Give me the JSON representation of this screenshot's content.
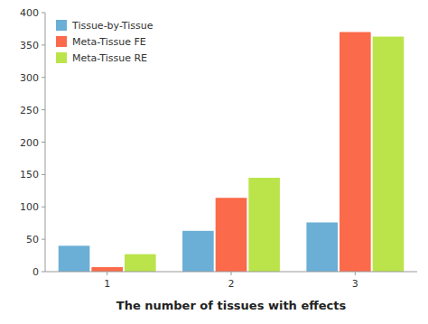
{
  "chart_data": {
    "type": "bar",
    "categories": [
      "1",
      "2",
      "3"
    ],
    "series": [
      {
        "name": "Tissue-by-Tissue",
        "color": "#6baed6",
        "values": [
          40,
          63,
          76
        ]
      },
      {
        "name": "Meta-Tissue FE",
        "color": "#fb6a4a",
        "values": [
          7,
          114,
          370
        ]
      },
      {
        "name": "Meta-Tissue RE",
        "color": "#bae44a",
        "values": [
          27,
          145,
          363
        ]
      }
    ],
    "x_label": "The number of tissues with effects",
    "ylim": [
      0,
      400
    ],
    "yticks": [
      0,
      50,
      100,
      150,
      200,
      250,
      300,
      350,
      400
    ],
    "grid": false,
    "legend": "upper left"
  }
}
